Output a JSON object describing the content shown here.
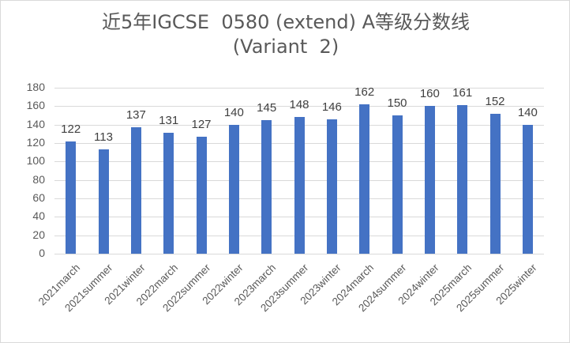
{
  "chart_data": {
    "type": "bar",
    "title": "近5年IGCSE 0580（extend）A等级分数线（Variant 2）",
    "title_line1": "近5年IGCSE  0580 (extend) A等级分数线",
    "title_line2": "(Variant  2)",
    "categories": [
      "2021march",
      "2021summer",
      "2021winter",
      "2022march",
      "2022summer",
      "2022winter",
      "2023march",
      "2023summer",
      "2023winter",
      "2024march",
      "2024summer",
      "2024winter",
      "2025march",
      "2025summer",
      "2025winter"
    ],
    "values": [
      122,
      113,
      137,
      131,
      127,
      140,
      145,
      148,
      146,
      162,
      150,
      160,
      161,
      152,
      140
    ],
    "xlabel": "",
    "ylabel": "",
    "ylim": [
      0,
      180
    ],
    "yticks": [
      0,
      20,
      40,
      60,
      80,
      100,
      120,
      140,
      160,
      180
    ],
    "grid": true,
    "legend": "none",
    "bar_color": "#4472c4",
    "data_labels": true
  }
}
